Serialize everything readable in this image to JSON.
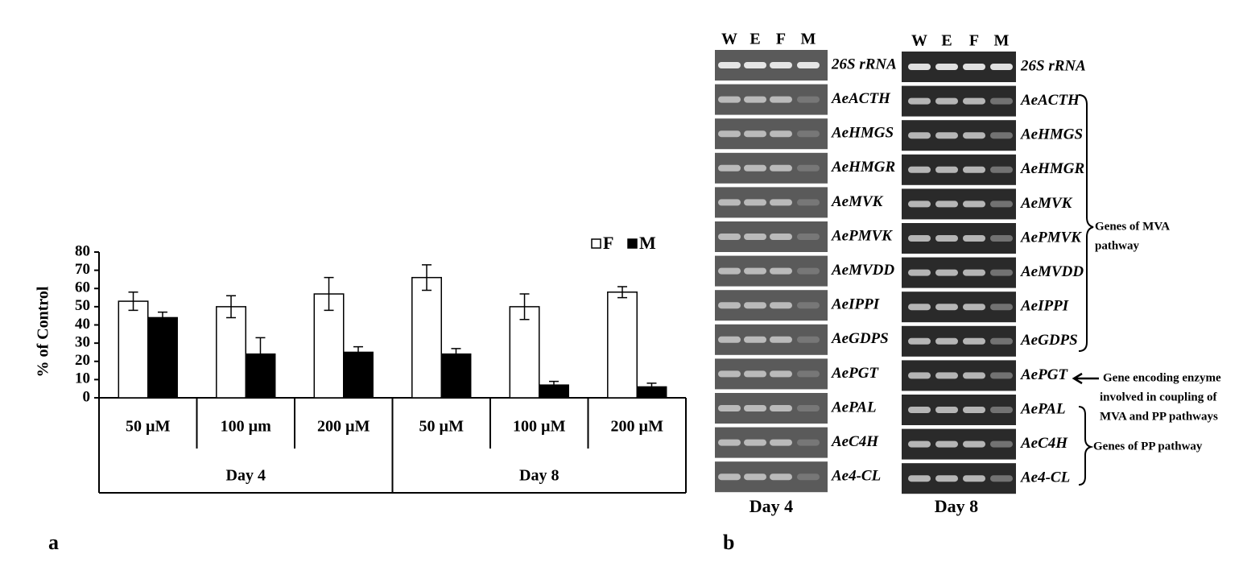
{
  "chart_data": {
    "type": "bar",
    "ylabel": "% of Control",
    "groups": [
      {
        "name": "Day 4",
        "categories": [
          "50 µM",
          "100 µm",
          "200 µM"
        ]
      },
      {
        "name": "Day 8",
        "categories": [
          "50 µM",
          "100 µM",
          "200 µM"
        ]
      }
    ],
    "series": [
      {
        "name": "F",
        "color": "#ffffff",
        "values": [
          53,
          50,
          57,
          66,
          50,
          58
        ],
        "errors": [
          5,
          6,
          9,
          7,
          7,
          3
        ]
      },
      {
        "name": "M",
        "color": "#000000",
        "values": [
          44,
          24,
          25,
          24,
          7,
          6
        ],
        "errors": [
          3,
          9,
          3,
          3,
          2,
          2
        ]
      }
    ],
    "ylim": [
      0,
      80
    ],
    "yticks": [
      0,
      10,
      20,
      30,
      40,
      50,
      60,
      70,
      80
    ],
    "grid": false,
    "legend": "top-right"
  },
  "panel_labels": [
    "a",
    "b"
  ],
  "gel": {
    "lanes": [
      "W",
      "E",
      "F",
      "M"
    ],
    "genes": [
      "26S rRNA",
      "AeACTH",
      "AeHMGS",
      "AeHMGR",
      "AeMVK",
      "AePMVK",
      "AeMVDD",
      "AeIPPI",
      "AeGDPS",
      "AePGT",
      "AePAL",
      "AeC4H",
      "Ae4-CL"
    ],
    "days": [
      "Day 4",
      "Day 8"
    ],
    "annotations": {
      "mva": [
        "Genes of MVA",
        "pathway"
      ],
      "coupling": [
        "Gene encoding enzyme",
        "involved  in coupling of",
        "MVA and PP pathways"
      ],
      "pp": [
        "Genes of PP pathway"
      ]
    }
  }
}
